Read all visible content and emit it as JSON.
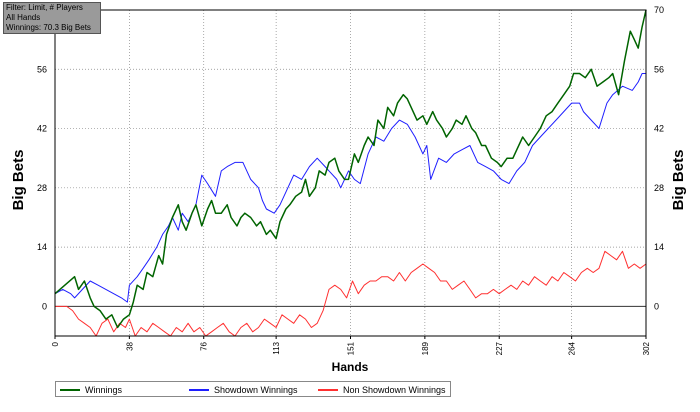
{
  "info": {
    "line1": "Filter: Limit, # Players",
    "line2": "All Hands",
    "line3": "Winnings: 70.3 Big Bets"
  },
  "chart_data": {
    "type": "line",
    "xlabel": "Hands",
    "ylabel": "Big Bets",
    "ylabel_right": "Big Bets",
    "xlim": [
      0,
      302
    ],
    "ylim": [
      -7,
      70
    ],
    "x_ticks": [
      0,
      38,
      76,
      113,
      151,
      189,
      227,
      264,
      302
    ],
    "y_ticks": [
      0,
      14,
      28,
      42,
      56,
      70
    ],
    "grid": true,
    "legend_position": "bottom",
    "series": [
      {
        "name": "Winnings",
        "color": "#006400",
        "x": [
          0,
          5,
          10,
          12,
          15,
          18,
          20,
          23,
          26,
          29,
          32,
          35,
          38,
          40,
          42,
          45,
          47,
          50,
          53,
          55,
          57,
          60,
          63,
          65,
          67,
          70,
          72,
          75,
          78,
          80,
          82,
          85,
          88,
          90,
          93,
          95,
          97,
          100,
          103,
          105,
          108,
          110,
          113,
          115,
          118,
          120,
          123,
          126,
          128,
          130,
          133,
          135,
          138,
          140,
          143,
          145,
          148,
          150,
          153,
          155,
          158,
          160,
          163,
          165,
          168,
          170,
          173,
          175,
          178,
          180,
          183,
          185,
          188,
          190,
          193,
          195,
          198,
          200,
          203,
          205,
          208,
          210,
          213,
          215,
          218,
          220,
          223,
          226,
          228,
          231,
          234,
          236,
          239,
          242,
          245,
          248,
          251,
          254,
          257,
          260,
          263,
          265,
          268,
          271,
          274,
          277,
          280,
          283,
          285,
          288,
          291,
          294,
          296,
          298,
          300,
          302
        ],
        "y": [
          3,
          5,
          7,
          4,
          6,
          2,
          0,
          -1,
          -3,
          -2,
          -5,
          -3,
          -2,
          1,
          5,
          4,
          8,
          7,
          12,
          10,
          17,
          21,
          24,
          20,
          18,
          22,
          24,
          19,
          23,
          25,
          22,
          22,
          24,
          21,
          19,
          21,
          22,
          21,
          19,
          20,
          17,
          18,
          16,
          20,
          23,
          24,
          26,
          27,
          30,
          26,
          28,
          32,
          31,
          34,
          35,
          32,
          30,
          30,
          36,
          34,
          38,
          40,
          38,
          44,
          42,
          47,
          45,
          48,
          50,
          49,
          46,
          44,
          45,
          43,
          46,
          44,
          42,
          40,
          42,
          44,
          43,
          45,
          42,
          41,
          38,
          38,
          35,
          34,
          33,
          35,
          35,
          37,
          40,
          38,
          40,
          42,
          45,
          46,
          48,
          50,
          52,
          55,
          55,
          54,
          56,
          52,
          53,
          54,
          55,
          50,
          58,
          65,
          63,
          61,
          66,
          70
        ]
      },
      {
        "name": "Showdown Winnings",
        "color": "#1f1fff",
        "x": [
          0,
          4,
          8,
          10,
          14,
          18,
          22,
          26,
          30,
          34,
          37,
          38,
          42,
          45,
          48,
          52,
          55,
          58,
          60,
          63,
          65,
          68,
          72,
          75,
          78,
          82,
          85,
          88,
          92,
          96,
          100,
          104,
          106,
          108,
          112,
          115,
          118,
          122,
          126,
          130,
          134,
          138,
          140,
          144,
          146,
          150,
          153,
          156,
          160,
          164,
          168,
          172,
          176,
          180,
          184,
          188,
          190,
          192,
          196,
          200,
          204,
          208,
          212,
          216,
          220,
          224,
          228,
          232,
          236,
          240,
          244,
          248,
          252,
          256,
          260,
          264,
          268,
          270,
          274,
          278,
          282,
          285,
          290,
          295,
          298,
          300,
          302
        ],
        "y": [
          3,
          4,
          3,
          2,
          4,
          6,
          5,
          4,
          3,
          2,
          1,
          5,
          7,
          9,
          11,
          14,
          17,
          19,
          21,
          18,
          22,
          20,
          24,
          31,
          29,
          26,
          32,
          33,
          34,
          34,
          30,
          28,
          25,
          23,
          22,
          24,
          27,
          31,
          30,
          33,
          35,
          33,
          32,
          30,
          28,
          32,
          30,
          29,
          36,
          40,
          39,
          42,
          44,
          43,
          40,
          36,
          38,
          30,
          35,
          34,
          36,
          37,
          38,
          34,
          33,
          32,
          30,
          29,
          32,
          34,
          38,
          40,
          42,
          44,
          46,
          48,
          48,
          46,
          44,
          42,
          48,
          50,
          52,
          51,
          53,
          55,
          55
        ]
      },
      {
        "name": "Non Showdown Winnings",
        "color": "#ff3030",
        "x": [
          0,
          3,
          6,
          9,
          12,
          15,
          18,
          21,
          24,
          27,
          30,
          33,
          36,
          38,
          41,
          44,
          47,
          50,
          53,
          56,
          59,
          62,
          65,
          68,
          71,
          74,
          77,
          80,
          83,
          86,
          89,
          92,
          95,
          98,
          101,
          104,
          107,
          110,
          113,
          116,
          119,
          122,
          125,
          128,
          131,
          134,
          137,
          140,
          143,
          146,
          149,
          152,
          155,
          158,
          161,
          164,
          167,
          170,
          173,
          176,
          179,
          182,
          185,
          188,
          191,
          194,
          197,
          200,
          203,
          206,
          209,
          212,
          215,
          218,
          221,
          224,
          227,
          230,
          233,
          236,
          239,
          242,
          245,
          248,
          251,
          254,
          257,
          260,
          263,
          266,
          269,
          272,
          275,
          278,
          281,
          284,
          287,
          290,
          293,
          296,
          299,
          302
        ],
        "y": [
          0,
          0,
          0,
          -1,
          -3,
          -4,
          -5,
          -7,
          -4,
          -3,
          -6,
          -4,
          -5,
          -3,
          -7,
          -5,
          -6,
          -4,
          -5,
          -6,
          -7,
          -5,
          -6,
          -4,
          -6,
          -5,
          -7,
          -6,
          -5,
          -4,
          -6,
          -7,
          -5,
          -4,
          -6,
          -5,
          -3,
          -4,
          -5,
          -2,
          -3,
          -4,
          -2,
          -3,
          -5,
          -4,
          -1,
          4,
          5,
          4,
          2,
          6,
          3,
          5,
          6,
          6,
          7,
          7,
          6,
          8,
          6,
          8,
          9,
          10,
          9,
          8,
          6,
          6,
          4,
          5,
          6,
          4,
          2,
          3,
          3,
          4,
          3,
          4,
          5,
          4,
          6,
          5,
          7,
          6,
          5,
          7,
          6,
          8,
          7,
          6,
          8,
          9,
          8,
          9,
          13,
          12,
          11,
          13,
          9,
          10,
          9,
          10
        ]
      }
    ]
  }
}
